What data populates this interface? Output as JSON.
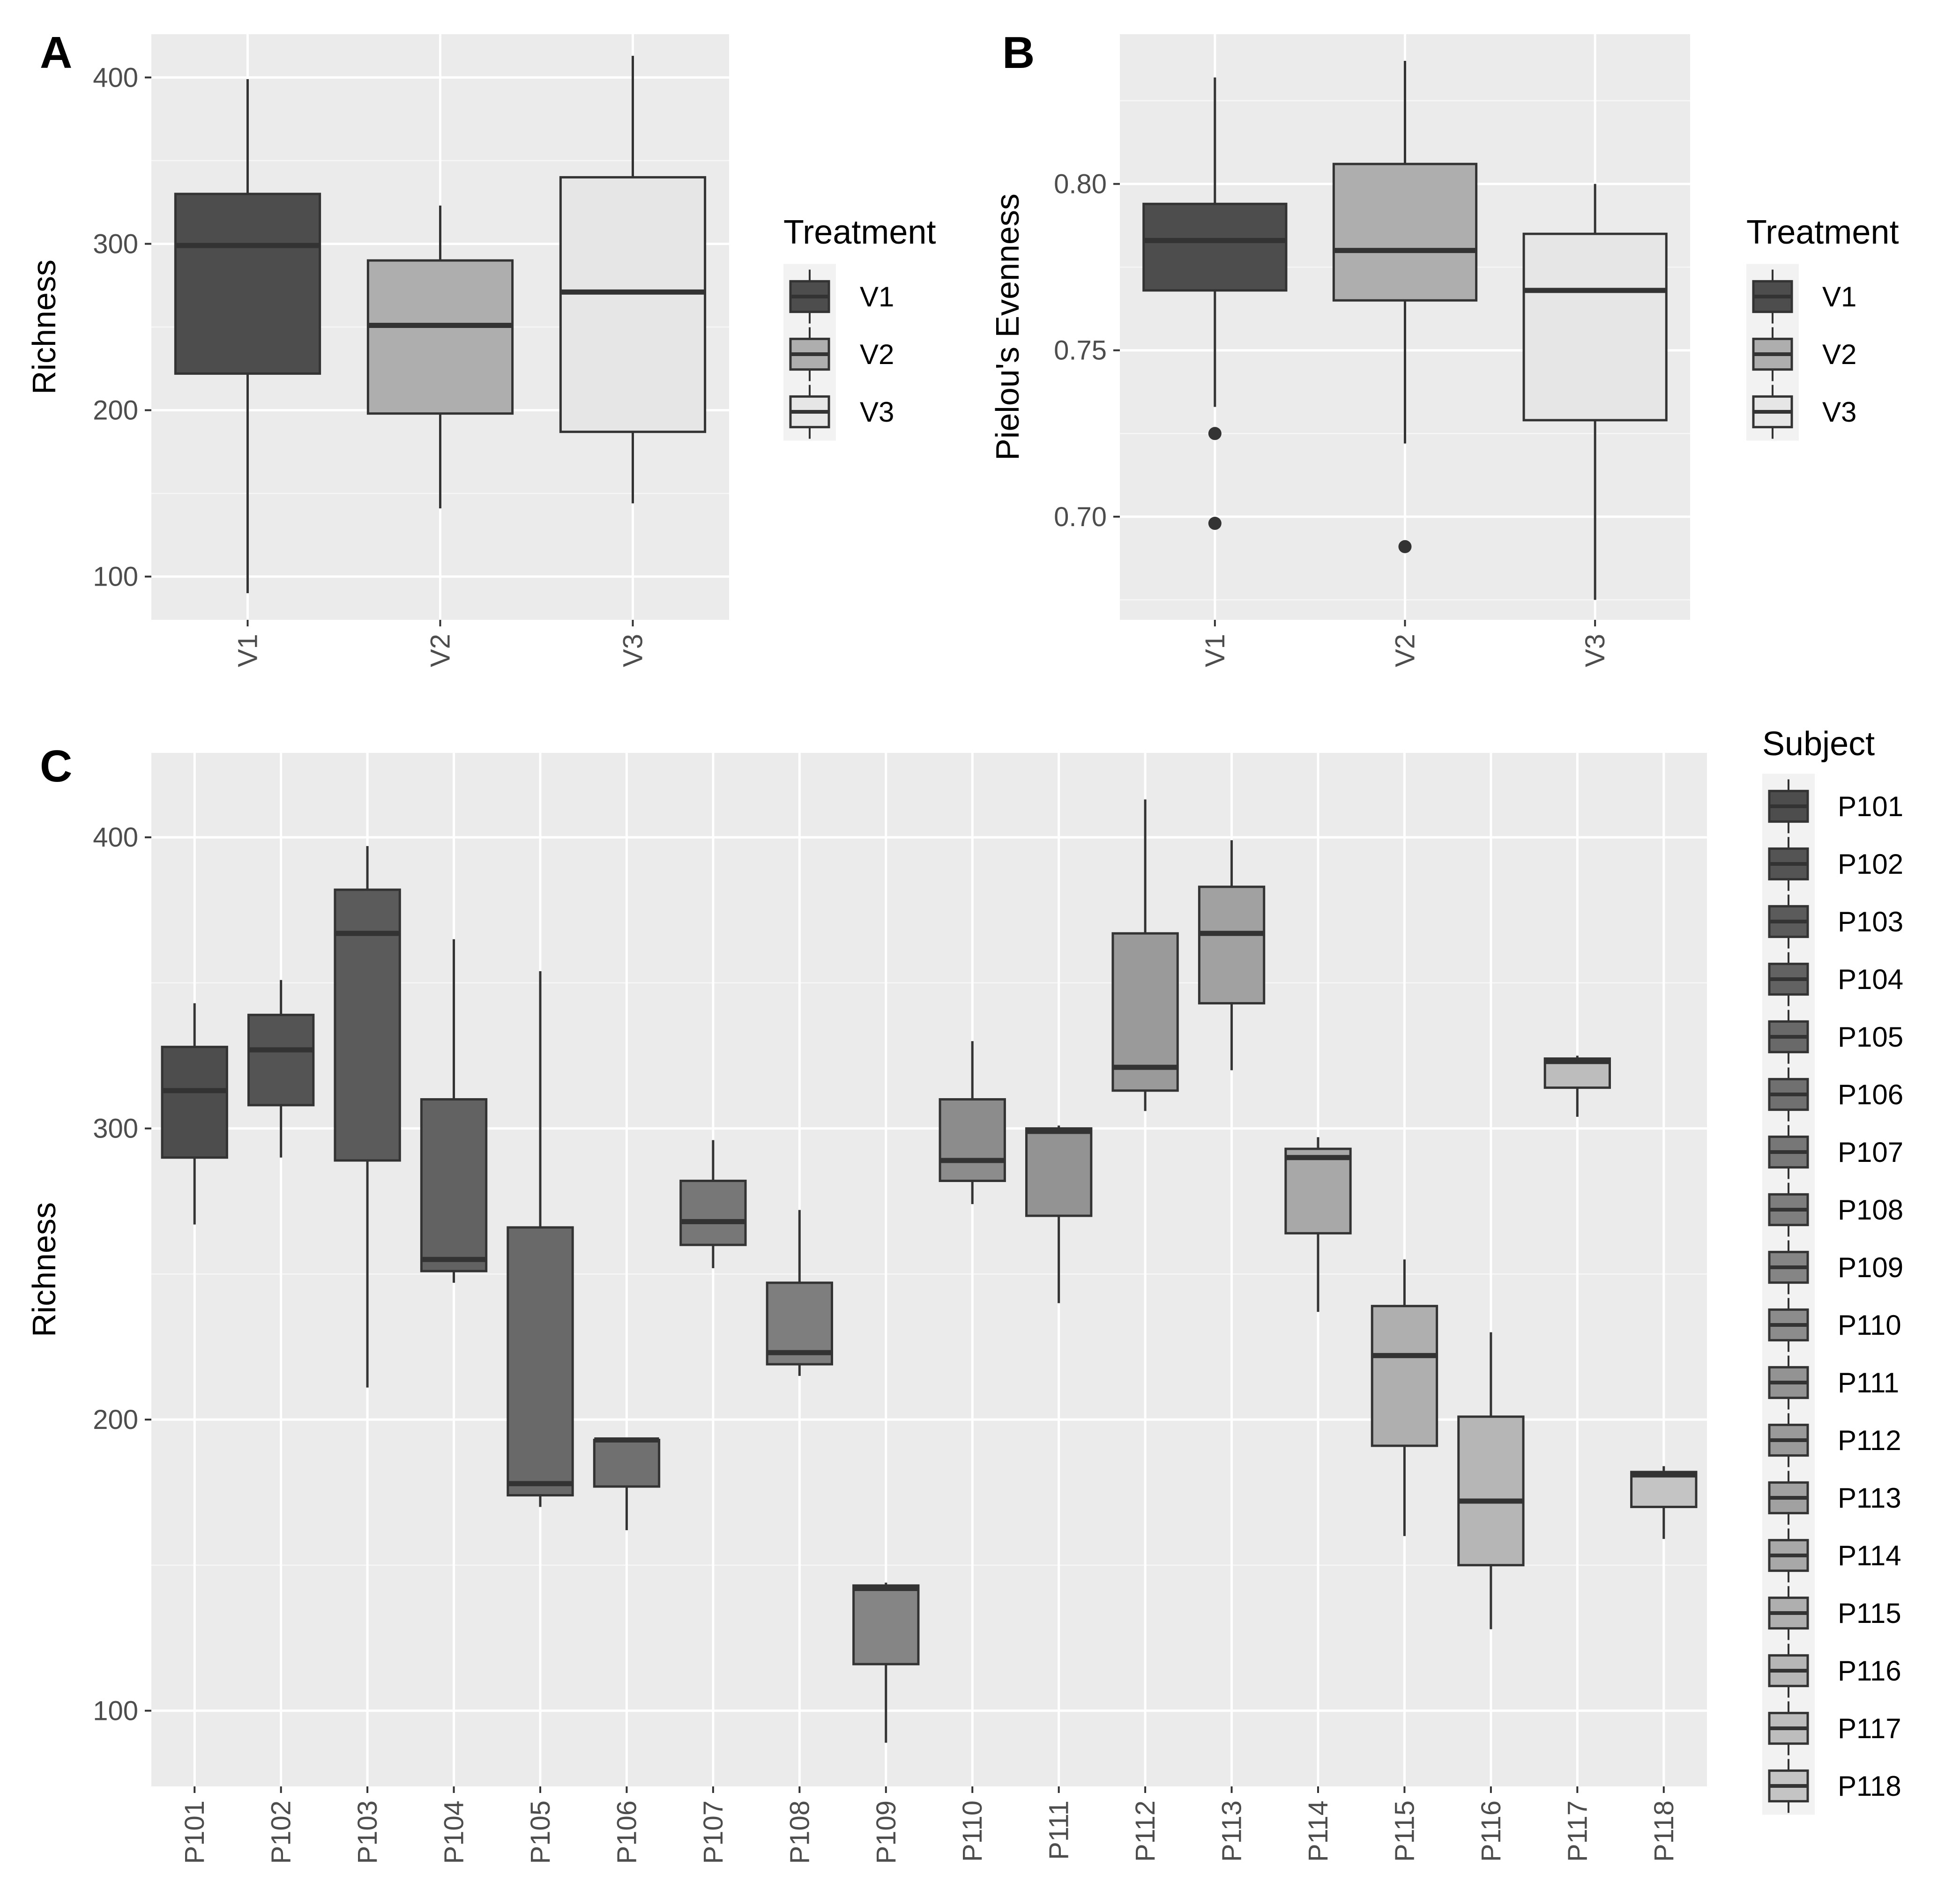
{
  "colors": {
    "panel_bg": "#ebebeb",
    "grid_major": "#ffffff",
    "box_outline": "#333333",
    "outlier": "#333333",
    "tick_label": "#4d4d4d"
  },
  "chart_data": [
    {
      "id": "A",
      "type": "boxplot",
      "panel_label": "A",
      "ylabel": "Richness",
      "xlabel": "",
      "ylim": [
        74,
        426
      ],
      "yticks": [
        100,
        200,
        300,
        400
      ],
      "ytick_labels": [
        "100",
        "200",
        "300",
        "400"
      ],
      "grid": true,
      "categories": [
        "V1",
        "V2",
        "V3"
      ],
      "boxes": [
        {
          "category": "V1",
          "fill": "#4d4d4d",
          "lower_whisker": 90,
          "q1": 222,
          "median": 299,
          "q3": 330,
          "upper_whisker": 399,
          "outliers": []
        },
        {
          "category": "V2",
          "fill": "#aeaeae",
          "lower_whisker": 141,
          "q1": 198,
          "median": 251,
          "q3": 290,
          "upper_whisker": 323,
          "outliers": []
        },
        {
          "category": "V3",
          "fill": "#e6e6e6",
          "lower_whisker": 144,
          "q1": 187,
          "median": 271,
          "q3": 340,
          "upper_whisker": 413,
          "outliers": []
        }
      ],
      "legend": {
        "title": "Treatment",
        "placement": "right",
        "items": [
          {
            "label": "V1",
            "fill": "#4d4d4d"
          },
          {
            "label": "V2",
            "fill": "#aeaeae"
          },
          {
            "label": "V3",
            "fill": "#e6e6e6"
          }
        ]
      }
    },
    {
      "id": "B",
      "type": "boxplot",
      "panel_label": "B",
      "ylabel": "Pielou's Evenness",
      "xlabel": "",
      "ylim": [
        0.669,
        0.845
      ],
      "yticks": [
        0.7,
        0.75,
        0.8
      ],
      "ytick_labels": [
        "0.70",
        "0.75",
        "0.80"
      ],
      "grid": true,
      "categories": [
        "V1",
        "V2",
        "V3"
      ],
      "boxes": [
        {
          "category": "V1",
          "fill": "#4d4d4d",
          "lower_whisker": 0.733,
          "q1": 0.768,
          "median": 0.783,
          "q3": 0.794,
          "upper_whisker": 0.832,
          "outliers": [
            0.725,
            0.698
          ]
        },
        {
          "category": "V2",
          "fill": "#aeaeae",
          "lower_whisker": 0.722,
          "q1": 0.765,
          "median": 0.78,
          "q3": 0.806,
          "upper_whisker": 0.837,
          "outliers": [
            0.691
          ]
        },
        {
          "category": "V3",
          "fill": "#e6e6e6",
          "lower_whisker": 0.675,
          "q1": 0.729,
          "median": 0.768,
          "q3": 0.785,
          "upper_whisker": 0.8,
          "outliers": []
        }
      ],
      "legend": {
        "title": "Treatment",
        "placement": "right",
        "items": [
          {
            "label": "V1",
            "fill": "#4d4d4d"
          },
          {
            "label": "V2",
            "fill": "#aeaeae"
          },
          {
            "label": "V3",
            "fill": "#e6e6e6"
          }
        ]
      }
    },
    {
      "id": "C",
      "type": "boxplot",
      "panel_label": "C",
      "ylabel": "Richness",
      "xlabel": "",
      "ylim": [
        74,
        429
      ],
      "yticks": [
        100,
        200,
        300,
        400
      ],
      "ytick_labels": [
        "100",
        "200",
        "300",
        "400"
      ],
      "grid": true,
      "categories": [
        "P101",
        "P102",
        "P103",
        "P104",
        "P105",
        "P106",
        "P107",
        "P108",
        "P109",
        "P110",
        "P111",
        "P112",
        "P113",
        "P114",
        "P115",
        "P116",
        "P117",
        "P118"
      ],
      "boxes": [
        {
          "category": "P101",
          "fill": "#4d4d4d",
          "lower_whisker": 267,
          "q1": 290,
          "median": 313,
          "q3": 328,
          "upper_whisker": 343,
          "outliers": []
        },
        {
          "category": "P102",
          "fill": "#545454",
          "lower_whisker": 290,
          "q1": 308,
          "median": 327,
          "q3": 339,
          "upper_whisker": 351,
          "outliers": []
        },
        {
          "category": "P103",
          "fill": "#5b5b5b",
          "lower_whisker": 211,
          "q1": 289,
          "median": 367,
          "q3": 382,
          "upper_whisker": 397,
          "outliers": []
        },
        {
          "category": "P104",
          "fill": "#626262",
          "lower_whisker": 247,
          "q1": 251,
          "median": 255,
          "q3": 310,
          "upper_whisker": 365,
          "outliers": []
        },
        {
          "category": "P105",
          "fill": "#696969",
          "lower_whisker": 170,
          "q1": 174,
          "median": 178,
          "q3": 266,
          "upper_whisker": 354,
          "outliers": []
        },
        {
          "category": "P106",
          "fill": "#707070",
          "lower_whisker": 162,
          "q1": 177,
          "median": 193,
          "q3": 193,
          "upper_whisker": 193,
          "outliers": []
        },
        {
          "category": "P107",
          "fill": "#777777",
          "lower_whisker": 252,
          "q1": 260,
          "median": 268,
          "q3": 282,
          "upper_whisker": 296,
          "outliers": []
        },
        {
          "category": "P108",
          "fill": "#7e7e7e",
          "lower_whisker": 215,
          "q1": 219,
          "median": 223,
          "q3": 247,
          "upper_whisker": 272,
          "outliers": []
        },
        {
          "category": "P109",
          "fill": "#858585",
          "lower_whisker": 89,
          "q1": 116,
          "median": 142,
          "q3": 143,
          "upper_whisker": 144,
          "outliers": []
        },
        {
          "category": "P110",
          "fill": "#8c8c8c",
          "lower_whisker": 274,
          "q1": 282,
          "median": 289,
          "q3": 310,
          "upper_whisker": 330,
          "outliers": []
        },
        {
          "category": "P111",
          "fill": "#939393",
          "lower_whisker": 240,
          "q1": 270,
          "median": 299,
          "q3": 300,
          "upper_whisker": 301,
          "outliers": []
        },
        {
          "category": "P112",
          "fill": "#9a9a9a",
          "lower_whisker": 306,
          "q1": 313,
          "median": 321,
          "q3": 367,
          "upper_whisker": 413,
          "outliers": []
        },
        {
          "category": "P113",
          "fill": "#a1a1a1",
          "lower_whisker": 320,
          "q1": 343,
          "median": 367,
          "q3": 383,
          "upper_whisker": 399,
          "outliers": []
        },
        {
          "category": "P114",
          "fill": "#a8a8a8",
          "lower_whisker": 237,
          "q1": 264,
          "median": 290,
          "q3": 293,
          "upper_whisker": 297,
          "outliers": []
        },
        {
          "category": "P115",
          "fill": "#afafaf",
          "lower_whisker": 160,
          "q1": 191,
          "median": 222,
          "q3": 239,
          "upper_whisker": 255,
          "outliers": []
        },
        {
          "category": "P116",
          "fill": "#b6b6b6",
          "lower_whisker": 128,
          "q1": 150,
          "median": 172,
          "q3": 201,
          "upper_whisker": 230,
          "outliers": []
        },
        {
          "category": "P117",
          "fill": "#bdbdbd",
          "lower_whisker": 304,
          "q1": 314,
          "median": 323,
          "q3": 324,
          "upper_whisker": 325,
          "outliers": []
        },
        {
          "category": "P118",
          "fill": "#c4c4c4",
          "lower_whisker": 159,
          "q1": 170,
          "median": 181,
          "q3": 182,
          "upper_whisker": 184,
          "outliers": []
        }
      ],
      "legend": {
        "title": "Subject",
        "placement": "right",
        "items": [
          {
            "label": "P101",
            "fill": "#4d4d4d"
          },
          {
            "label": "P102",
            "fill": "#545454"
          },
          {
            "label": "P103",
            "fill": "#5b5b5b"
          },
          {
            "label": "P104",
            "fill": "#626262"
          },
          {
            "label": "P105",
            "fill": "#696969"
          },
          {
            "label": "P106",
            "fill": "#707070"
          },
          {
            "label": "P107",
            "fill": "#777777"
          },
          {
            "label": "P108",
            "fill": "#7e7e7e"
          },
          {
            "label": "P109",
            "fill": "#858585"
          },
          {
            "label": "P110",
            "fill": "#8c8c8c"
          },
          {
            "label": "P111",
            "fill": "#939393"
          },
          {
            "label": "P112",
            "fill": "#9a9a9a"
          },
          {
            "label": "P113",
            "fill": "#a1a1a1"
          },
          {
            "label": "P114",
            "fill": "#a8a8a8"
          },
          {
            "label": "P115",
            "fill": "#afafaf"
          },
          {
            "label": "P116",
            "fill": "#b6b6b6"
          },
          {
            "label": "P117",
            "fill": "#bdbdbd"
          },
          {
            "label": "P118",
            "fill": "#c4c4c4"
          }
        ]
      }
    }
  ]
}
